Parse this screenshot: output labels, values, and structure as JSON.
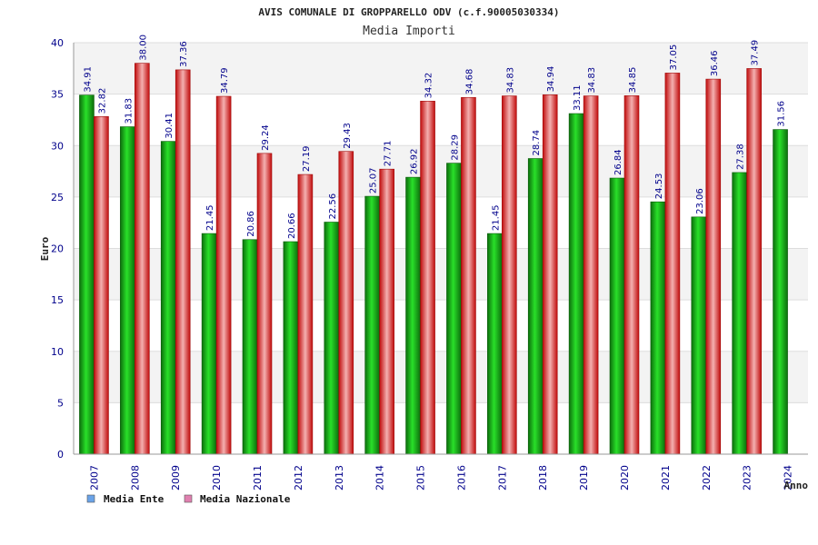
{
  "chart_data": {
    "type": "bar",
    "title": "AVIS COMUNALE DI GROPPARELLO ODV (c.f.90005030334)",
    "subtitle": "Media Importi",
    "xlabel": "Anno",
    "ylabel": "Euro",
    "ylim": [
      0,
      40
    ],
    "yticks": [
      "0",
      "5",
      "10",
      "15",
      "20",
      "25",
      "30",
      "35",
      "40"
    ],
    "grid": true,
    "legend_position": "bottom-left",
    "categories": [
      "2007",
      "2008",
      "2009",
      "2010",
      "2011",
      "2012",
      "2013",
      "2014",
      "2015",
      "2016",
      "2017",
      "2018",
      "2019",
      "2020",
      "2021",
      "2022",
      "2023",
      "2024"
    ],
    "series": [
      {
        "name": "Media Ente",
        "legend_color": "#6aa3e8",
        "bar_color": "#11aa11",
        "values": [
          34.91,
          31.83,
          30.41,
          21.45,
          20.86,
          20.66,
          22.56,
          25.07,
          26.92,
          28.29,
          21.45,
          28.74,
          33.11,
          26.84,
          24.53,
          23.06,
          27.38,
          31.56
        ],
        "labels": [
          "34.91",
          "31.83",
          "30.41",
          "21.45",
          "20.86",
          "20.66",
          "22.56",
          "25.07",
          "26.92",
          "28.29",
          "21.45",
          "28.74",
          "33.11",
          "26.84",
          "24.53",
          "23.06",
          "27.38",
          "31.56"
        ]
      },
      {
        "name": "Media Nazionale",
        "legend_color": "#e080b0",
        "bar_color": "#ee2222",
        "values": [
          32.82,
          38.0,
          37.36,
          34.79,
          29.24,
          27.19,
          29.43,
          27.71,
          34.32,
          34.68,
          34.83,
          34.94,
          34.83,
          34.85,
          37.05,
          36.46,
          37.49,
          null
        ],
        "labels": [
          "32.82",
          "38.00",
          "37.36",
          "34.79",
          "29.24",
          "27.19",
          "29.43",
          "27.71",
          "34.32",
          "34.68",
          "34.83",
          "34.94",
          "34.83",
          "34.85",
          "37.05",
          "36.46",
          "37.49",
          ""
        ]
      }
    ]
  }
}
